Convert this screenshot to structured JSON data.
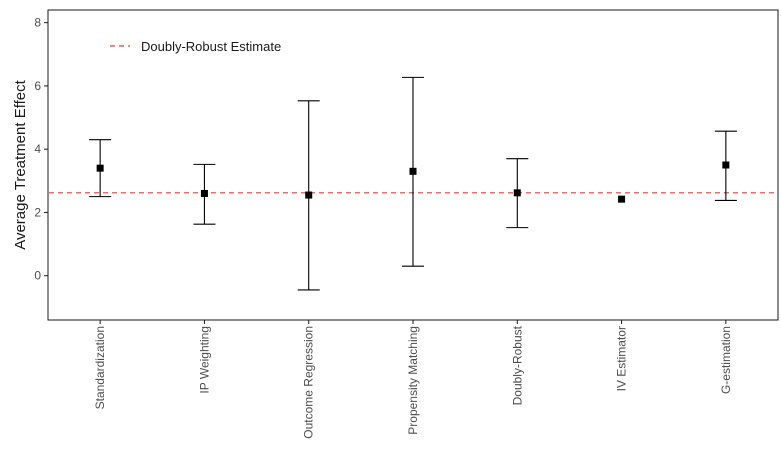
{
  "chart_data": {
    "type": "errorbar",
    "title": "",
    "xlabel": "",
    "ylabel": "Average Treatment Effect",
    "ylim": [
      -1.4,
      8.4
    ],
    "yticks": [
      0,
      2,
      4,
      6,
      8
    ],
    "categories": [
      "Standardization",
      "IP Weighting",
      "Outcome Regression",
      "Propensity Matching",
      "Doubly-Robust",
      "IV Estimator",
      "G-estimation"
    ],
    "estimates": [
      3.4,
      2.6,
      2.55,
      3.3,
      2.62,
      2.42,
      3.5
    ],
    "lower": [
      2.5,
      1.63,
      -0.45,
      0.3,
      1.52,
      null,
      2.38
    ],
    "upper": [
      4.3,
      3.52,
      5.53,
      6.27,
      3.7,
      null,
      4.57
    ],
    "reference_line": {
      "label": "Doubly-Robust Estimate",
      "value": 2.62,
      "color": "#ff3333",
      "style": "dashed"
    },
    "legend": {
      "entries": [
        "Doubly-Robust Estimate"
      ],
      "placement": "top-left"
    },
    "grid": false,
    "colors": {
      "points": "#000000",
      "errorbars": "#000000",
      "axis": "#1a1a1a"
    }
  }
}
